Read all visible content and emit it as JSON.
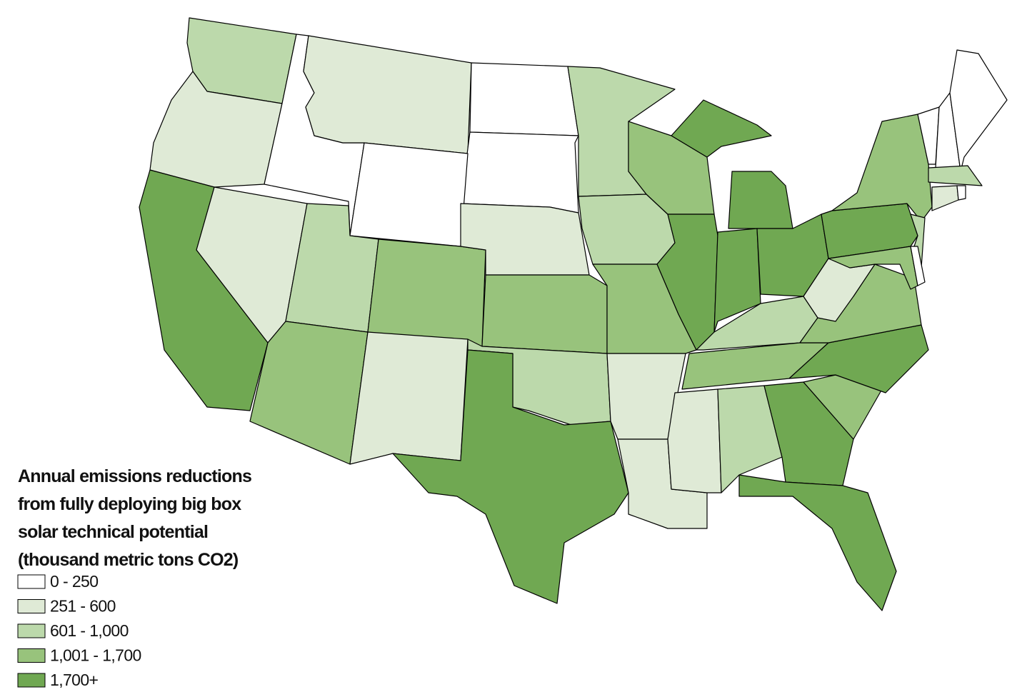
{
  "legend": {
    "title": [
      "Annual emissions reductions",
      "from fully deploying big box",
      "solar technical potential",
      "(thousand metric tons CO2)"
    ],
    "items": [
      {
        "label": "0 - 250",
        "color": "#ffffff"
      },
      {
        "label": "251 - 600",
        "color": "#dfead6"
      },
      {
        "label": "601 - 1,000",
        "color": "#bcd9ab"
      },
      {
        "label": "1,001 - 1,700",
        "color": "#98c37c"
      },
      {
        "label": "1,700+",
        "color": "#70a852"
      }
    ]
  },
  "regions": [
    2,
    1,
    0,
    1,
    0,
    0,
    0,
    1,
    4,
    2,
    3,
    3,
    1,
    1,
    3,
    2,
    4,
    2,
    2,
    3,
    1,
    1,
    3,
    4,
    4,
    4,
    4,
    2,
    3,
    1,
    2,
    4,
    4,
    3,
    4,
    3,
    1,
    4,
    3,
    2,
    3,
    0,
    0,
    0,
    0,
    2,
    1,
    0
  ]
}
